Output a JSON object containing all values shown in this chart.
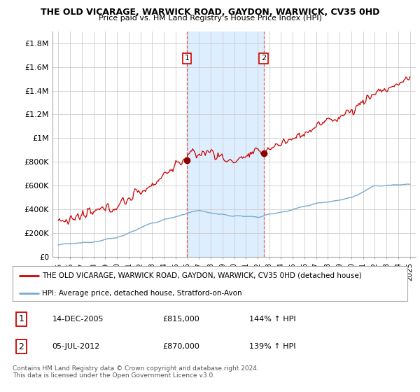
{
  "title": "THE OLD VICARAGE, WARWICK ROAD, GAYDON, WARWICK, CV35 0HD",
  "subtitle": "Price paid vs. HM Land Registry's House Price Index (HPI)",
  "legend_line1": "THE OLD VICARAGE, WARWICK ROAD, GAYDON, WARWICK, CV35 0HD (detached house)",
  "legend_line2": "HPI: Average price, detached house, Stratford-on-Avon",
  "annotation1_label": "1",
  "annotation1_date": "14-DEC-2005",
  "annotation1_price": "£815,000",
  "annotation1_hpi": "144% ↑ HPI",
  "annotation1_year": 2005.96,
  "annotation1_value": 815000,
  "annotation2_label": "2",
  "annotation2_date": "05-JUL-2012",
  "annotation2_price": "£870,000",
  "annotation2_hpi": "139% ↑ HPI",
  "annotation2_year": 2012.51,
  "annotation2_value": 870000,
  "footer": "Contains HM Land Registry data © Crown copyright and database right 2024.\nThis data is licensed under the Open Government Licence v3.0.",
  "red_color": "#cc0000",
  "blue_color": "#7aaacc",
  "shade_color": "#ddeeff",
  "dashed_color": "#dd6666",
  "ylim": [
    0,
    1900000
  ],
  "xlim": [
    1994.5,
    2025.5
  ],
  "yticks": [
    0,
    200000,
    400000,
    600000,
    800000,
    1000000,
    1200000,
    1400000,
    1600000,
    1800000
  ],
  "ytick_labels": [
    "£0",
    "£200K",
    "£400K",
    "£600K",
    "£800K",
    "£1M",
    "£1.2M",
    "£1.4M",
    "£1.6M",
    "£1.8M"
  ],
  "xticks": [
    1995,
    1996,
    1997,
    1998,
    1999,
    2000,
    2001,
    2002,
    2003,
    2004,
    2005,
    2006,
    2007,
    2008,
    2009,
    2010,
    2011,
    2012,
    2013,
    2014,
    2015,
    2016,
    2017,
    2018,
    2019,
    2020,
    2021,
    2022,
    2023,
    2024,
    2025
  ]
}
